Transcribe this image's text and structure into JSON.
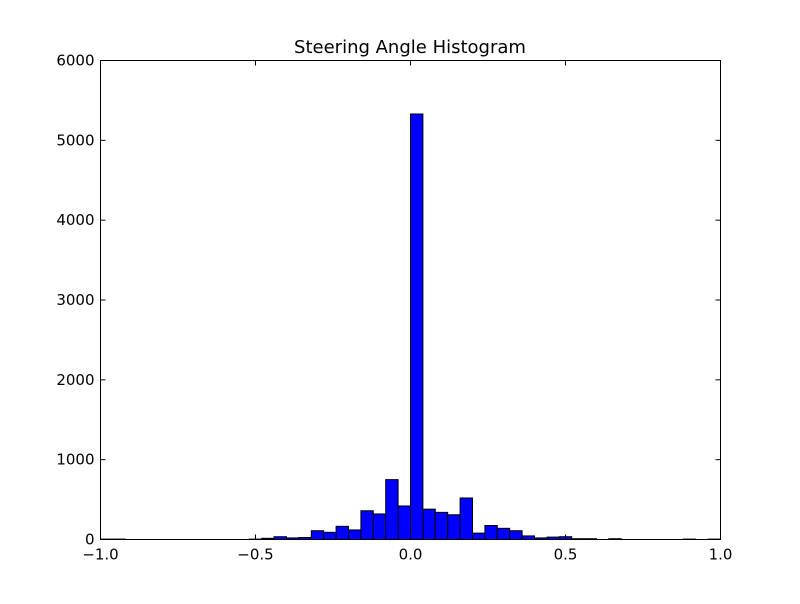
{
  "chart_data": {
    "type": "bar",
    "title": "Steering Angle Histogram",
    "xlabel": "",
    "ylabel": "",
    "xlim": [
      -1.0,
      1.0
    ],
    "ylim": [
      0,
      6000
    ],
    "x_ticks": [
      "−1.0",
      "−0.5",
      "0.0",
      "0.5",
      "1.0"
    ],
    "x_tick_values": [
      -1.0,
      -0.5,
      0.0,
      0.5,
      1.0
    ],
    "y_ticks": [
      "0",
      "1000",
      "2000",
      "3000",
      "4000",
      "5000",
      "6000"
    ],
    "y_tick_values": [
      0,
      1000,
      2000,
      3000,
      4000,
      5000,
      6000
    ],
    "bin_edges": [
      -1.0,
      -0.96,
      -0.92,
      -0.88,
      -0.84,
      -0.8,
      -0.76,
      -0.72,
      -0.68,
      -0.64,
      -0.6,
      -0.56,
      -0.52,
      -0.48,
      -0.44,
      -0.4,
      -0.36,
      -0.32,
      -0.28,
      -0.24,
      -0.2,
      -0.16,
      -0.12,
      -0.08,
      -0.04,
      0.0,
      0.04,
      0.08,
      0.12,
      0.16,
      0.2,
      0.24,
      0.28,
      0.32,
      0.36,
      0.4,
      0.44,
      0.48,
      0.52,
      0.56,
      0.6,
      0.64,
      0.68,
      0.72,
      0.76,
      0.8,
      0.84,
      0.88,
      0.92,
      0.96,
      1.0
    ],
    "values": [
      5,
      5,
      0,
      0,
      0,
      0,
      0,
      0,
      0,
      0,
      0,
      0,
      5,
      15,
      35,
      20,
      25,
      110,
      90,
      165,
      120,
      360,
      320,
      750,
      420,
      5330,
      380,
      340,
      310,
      520,
      80,
      175,
      140,
      110,
      45,
      20,
      30,
      35,
      10,
      10,
      0,
      10,
      0,
      0,
      0,
      0,
      0,
      5,
      0,
      5
    ],
    "grid": false,
    "legend": "none",
    "colors": {
      "bar_fill": "#0000ff",
      "bar_edge": "#000000",
      "axes": "#000000",
      "background": "#ffffff"
    }
  }
}
